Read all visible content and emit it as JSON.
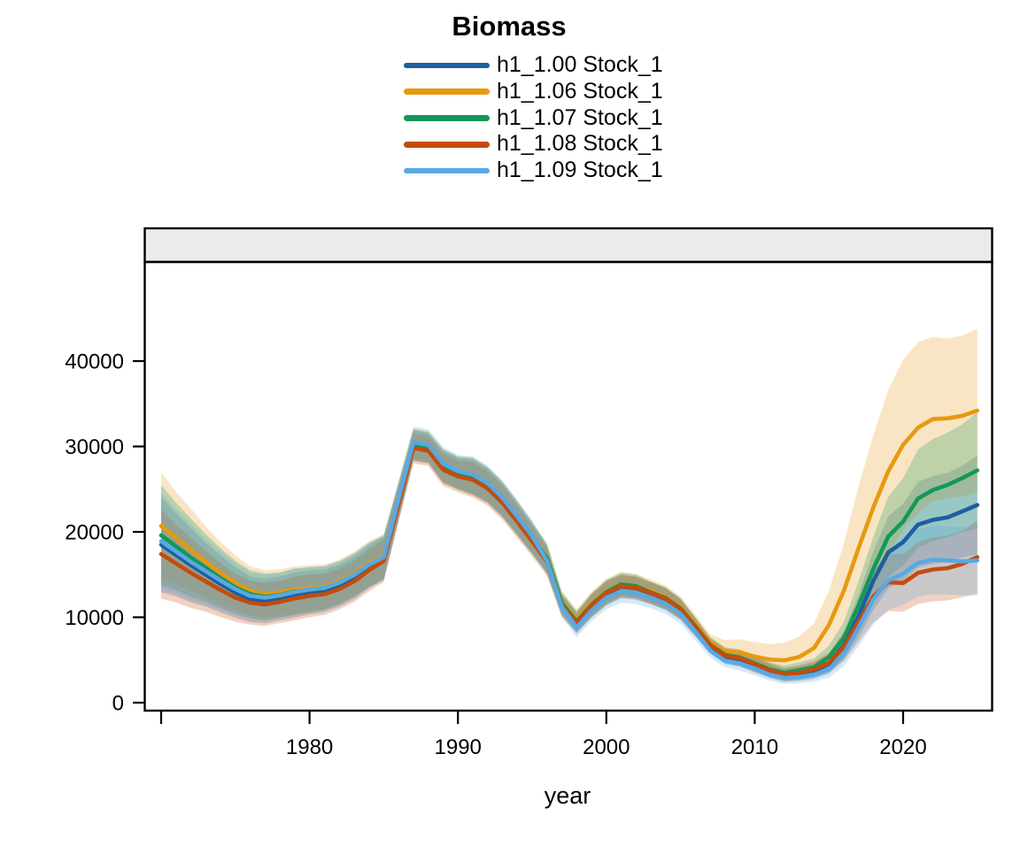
{
  "title": "Biomass",
  "strip_label": "",
  "axes": {
    "x_label": "year",
    "x_ticks": [
      {
        "year": 1970,
        "label": ""
      },
      {
        "year": 1980,
        "label": "1980"
      },
      {
        "year": 1990,
        "label": "1990"
      },
      {
        "year": 2000,
        "label": "2000"
      },
      {
        "year": 2010,
        "label": "2010"
      },
      {
        "year": 2020,
        "label": "2020"
      }
    ],
    "y_ticks": [
      {
        "value": 0,
        "label": "0"
      },
      {
        "value": 10000,
        "label": "10000"
      },
      {
        "value": 20000,
        "label": "20000"
      },
      {
        "value": 30000,
        "label": "30000"
      },
      {
        "value": 40000,
        "label": "40000"
      }
    ]
  },
  "style": {
    "strip_fill": "#ebebeb",
    "border_color": "#000000",
    "ribbon_opacity": 0.25,
    "line_width": 4.6
  },
  "chart_data": {
    "type": "line",
    "title": "Biomass",
    "xlabel": "year",
    "ylabel": "",
    "legend_position": "top",
    "grid": false,
    "has_confidence_ribbons": true,
    "xlim": [
      1969,
      2026
    ],
    "ylim": [
      0,
      49000
    ],
    "x": [
      1970,
      1971,
      1972,
      1973,
      1974,
      1975,
      1976,
      1977,
      1978,
      1979,
      1980,
      1981,
      1982,
      1983,
      1984,
      1985,
      1986,
      1987,
      1988,
      1989,
      1990,
      1991,
      1992,
      1993,
      1994,
      1995,
      1996,
      1997,
      1998,
      1999,
      2000,
      2001,
      2002,
      2003,
      2004,
      2005,
      2006,
      2007,
      2008,
      2009,
      2010,
      2011,
      2012,
      2013,
      2014,
      2015,
      2016,
      2017,
      2018,
      2019,
      2020,
      2021,
      2022,
      2023,
      2024,
      2025
    ],
    "series": [
      {
        "name": "h1_1.00 Stock_1",
        "color": "#1d5f9e",
        "values": [
          18500,
          17300,
          16100,
          15000,
          13900,
          12900,
          12100,
          11900,
          12200,
          12600,
          12900,
          13100,
          13700,
          14600,
          15900,
          16900,
          23500,
          30100,
          29800,
          27600,
          26800,
          26400,
          25400,
          23700,
          21500,
          19200,
          16800,
          11500,
          9300,
          11300,
          12800,
          13600,
          13400,
          12800,
          12100,
          10900,
          8800,
          6600,
          5400,
          5100,
          4400,
          3700,
          3200,
          3400,
          3700,
          4550,
          6700,
          10150,
          14300,
          17600,
          18800,
          20850,
          21400,
          21700,
          22400,
          23150
        ]
      },
      {
        "name": "h1_1.06 Stock_1",
        "color": "#e7990f",
        "values": [
          20700,
          19300,
          17900,
          16500,
          15200,
          14000,
          13100,
          12700,
          12900,
          13200,
          13400,
          13600,
          14200,
          15100,
          16300,
          17200,
          23800,
          30300,
          30000,
          27800,
          27000,
          26600,
          25600,
          23900,
          21700,
          19400,
          17000,
          11800,
          9700,
          11600,
          13100,
          13900,
          13700,
          13100,
          12400,
          11200,
          9200,
          7100,
          6000,
          5900,
          5400,
          5050,
          4950,
          5350,
          6400,
          9100,
          13100,
          18100,
          22900,
          27100,
          30200,
          32200,
          33200,
          33300,
          33600,
          34200
        ]
      },
      {
        "name": "h1_1.07 Stock_1",
        "color": "#13985a",
        "values": [
          19600,
          18300,
          17000,
          15800,
          14600,
          13500,
          12700,
          12400,
          12600,
          13000,
          13200,
          13400,
          14000,
          14900,
          16100,
          17000,
          23600,
          30200,
          29900,
          27700,
          26900,
          26500,
          25500,
          23800,
          21600,
          19300,
          16900,
          11650,
          9500,
          11450,
          12950,
          13850,
          13650,
          12900,
          12250,
          11050,
          8950,
          6800,
          5600,
          5300,
          4600,
          3900,
          3500,
          3800,
          4150,
          5350,
          7550,
          11400,
          15700,
          19450,
          21200,
          23900,
          24900,
          25500,
          26300,
          27200
        ]
      },
      {
        "name": "h1_1.08 Stock_1",
        "color": "#c54b0d",
        "values": [
          17400,
          16300,
          15200,
          14200,
          13200,
          12300,
          11700,
          11500,
          11800,
          12200,
          12500,
          12700,
          13300,
          14200,
          15500,
          16600,
          23200,
          29800,
          29500,
          27300,
          26500,
          26100,
          25100,
          23400,
          21200,
          18900,
          16500,
          11300,
          9400,
          11350,
          12850,
          13650,
          13450,
          12850,
          12150,
          10950,
          8850,
          6700,
          5500,
          5200,
          4500,
          3800,
          3300,
          3500,
          3900,
          4650,
          6500,
          9500,
          12400,
          14100,
          14000,
          15200,
          15600,
          15750,
          16250,
          17050
        ]
      },
      {
        "name": "h1_1.09 Stock_1",
        "color": "#58a9e2",
        "values": [
          18900,
          17700,
          16500,
          15400,
          14300,
          13300,
          12500,
          12300,
          12550,
          12950,
          13250,
          13450,
          14050,
          14950,
          16150,
          17050,
          23900,
          30500,
          30200,
          28000,
          27100,
          26700,
          25700,
          24000,
          21800,
          19500,
          16600,
          11200,
          8800,
          10800,
          12300,
          13000,
          12800,
          12300,
          11600,
          10400,
          8300,
          6100,
          4900,
          4600,
          4000,
          3300,
          2900,
          3000,
          3300,
          3900,
          5700,
          8800,
          12100,
          14300,
          15100,
          16350,
          16750,
          16650,
          16550,
          16650
        ]
      }
    ],
    "band_fraction": {
      "default": [
        0.3,
        0.28,
        0.27,
        0.25,
        0.24,
        0.23,
        0.22,
        0.22,
        0.21,
        0.21,
        0.2,
        0.19,
        0.18,
        0.17,
        0.16,
        0.15,
        0.09,
        0.06,
        0.06,
        0.07,
        0.07,
        0.08,
        0.08,
        0.085,
        0.09,
        0.095,
        0.1,
        0.11,
        0.13,
        0.12,
        0.11,
        0.1,
        0.1,
        0.1,
        0.105,
        0.11,
        0.12,
        0.13,
        0.16,
        0.18,
        0.2,
        0.22,
        0.24,
        0.25,
        0.25,
        0.25,
        0.25,
        0.25,
        0.24,
        0.24,
        0.24,
        0.24,
        0.24,
        0.24,
        0.24,
        0.25
      ],
      "h1_1.06 Stock_1": [
        0.3,
        0.28,
        0.27,
        0.25,
        0.24,
        0.23,
        0.22,
        0.22,
        0.21,
        0.21,
        0.2,
        0.19,
        0.18,
        0.17,
        0.16,
        0.15,
        0.09,
        0.06,
        0.06,
        0.07,
        0.07,
        0.08,
        0.08,
        0.085,
        0.09,
        0.095,
        0.1,
        0.11,
        0.13,
        0.12,
        0.11,
        0.1,
        0.1,
        0.1,
        0.105,
        0.11,
        0.12,
        0.13,
        0.22,
        0.26,
        0.31,
        0.36,
        0.42,
        0.45,
        0.45,
        0.44,
        0.42,
        0.4,
        0.37,
        0.35,
        0.33,
        0.31,
        0.29,
        0.28,
        0.28,
        0.28
      ]
    }
  }
}
